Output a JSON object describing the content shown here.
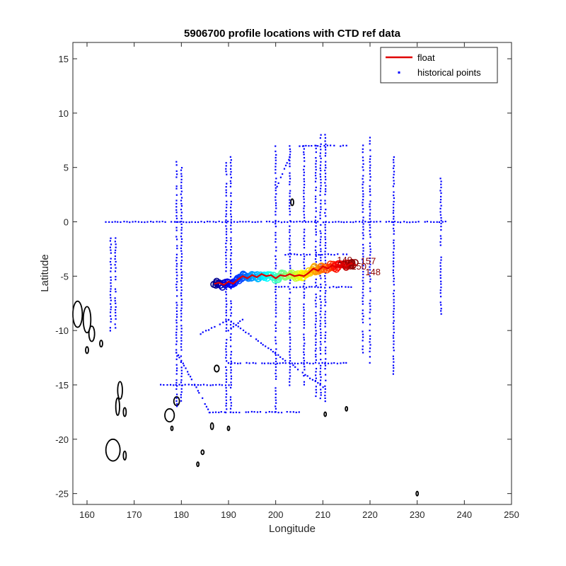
{
  "chart_data": {
    "type": "scatter",
    "title": "5906700 profile locations with CTD ref data",
    "xlabel": "Longitude",
    "ylabel": "Latitude",
    "xlim": [
      157,
      250
    ],
    "ylim": [
      -26,
      16.5
    ],
    "xticks": [
      160,
      170,
      180,
      190,
      200,
      210,
      220,
      230,
      240,
      250
    ],
    "yticks": [
      15,
      10,
      5,
      0,
      -5,
      -10,
      -15,
      -20,
      -25
    ],
    "grid": false,
    "legend": {
      "position": "top-right",
      "entries": [
        {
          "label": "float",
          "color": "#e00000",
          "marker": "line"
        },
        {
          "label": "historical points",
          "color": "#0000ff",
          "marker": "dot"
        }
      ]
    },
    "colors": {
      "float": "#e00000",
      "historical": "#0000ff",
      "coastline": "#000000",
      "profile_labels": "#8b0000"
    },
    "float_track": {
      "lon": [
        187,
        188,
        189,
        190,
        191,
        192,
        193,
        194,
        195,
        196,
        197,
        198,
        199,
        200,
        201,
        202,
        203,
        204,
        205,
        206,
        207,
        208,
        209,
        210,
        211,
        212,
        213,
        214,
        215,
        216,
        217
      ],
      "lat": [
        -5.7,
        -5.6,
        -5.8,
        -5.5,
        -5.7,
        -5.3,
        -5.0,
        -5.2,
        -4.9,
        -5.1,
        -4.8,
        -5.0,
        -4.9,
        -5.2,
        -4.9,
        -5.0,
        -4.8,
        -5.0,
        -4.9,
        -5.0,
        -4.7,
        -4.3,
        -4.5,
        -4.1,
        -4.3,
        -4.0,
        -4.2,
        -3.9,
        -4.1,
        -3.8,
        -4.0
      ]
    },
    "profile_labels": [
      "148",
      "149",
      "150",
      "157"
    ],
    "historical_lines": [
      {
        "from": [
          164,
          0
        ],
        "to": [
          236,
          0
        ]
      },
      {
        "from": [
          179,
          5.5
        ],
        "to": [
          179,
          -17
        ]
      },
      {
        "from": [
          180,
          5
        ],
        "to": [
          180,
          -17
        ]
      },
      {
        "from": [
          189.5,
          6
        ],
        "to": [
          189.5,
          -17.5
        ]
      },
      {
        "from": [
          190.5,
          6
        ],
        "to": [
          190.5,
          -17.5
        ]
      },
      {
        "from": [
          200,
          7
        ],
        "to": [
          200,
          -17.5
        ]
      },
      {
        "from": [
          203,
          7
        ],
        "to": [
          203,
          -15
        ]
      },
      {
        "from": [
          206,
          7
        ],
        "to": [
          206,
          -15
        ]
      },
      {
        "from": [
          208.5,
          7
        ],
        "to": [
          208.5,
          -16
        ]
      },
      {
        "from": [
          209.5,
          8
        ],
        "to": [
          209.5,
          -16.5
        ]
      },
      {
        "from": [
          210.5,
          8
        ],
        "to": [
          210.5,
          -16.5
        ]
      },
      {
        "from": [
          218.5,
          7
        ],
        "to": [
          218.5,
          -12
        ]
      },
      {
        "from": [
          220,
          8
        ],
        "to": [
          220,
          -13
        ]
      },
      {
        "from": [
          225,
          6
        ],
        "to": [
          225,
          -14
        ]
      },
      {
        "from": [
          235,
          4
        ],
        "to": [
          235,
          -8.5
        ]
      },
      {
        "from": [
          165,
          -1.5
        ],
        "to": [
          165,
          -10
        ]
      },
      {
        "from": [
          166,
          -1.5
        ],
        "to": [
          166,
          -10
        ]
      },
      {
        "from": [
          184,
          -10.3
        ],
        "to": [
          190,
          -9
        ]
      },
      {
        "from": [
          190,
          -9
        ],
        "to": [
          211,
          -15.5
        ]
      },
      {
        "from": [
          190,
          -10
        ],
        "to": [
          193,
          -9
        ]
      },
      {
        "from": [
          190,
          -13
        ],
        "to": [
          215,
          -13
        ]
      },
      {
        "from": [
          200,
          -6
        ],
        "to": [
          216,
          -6
        ]
      },
      {
        "from": [
          202,
          -3
        ],
        "to": [
          215,
          -3
        ]
      },
      {
        "from": [
          205,
          7
        ],
        "to": [
          215,
          7
        ]
      },
      {
        "from": [
          186,
          -17.5
        ],
        "to": [
          205,
          -17.5
        ]
      },
      {
        "from": [
          175,
          -15
        ],
        "to": [
          190,
          -15
        ]
      },
      {
        "from": [
          203,
          6
        ],
        "to": [
          200,
          3
        ]
      },
      {
        "from": [
          179,
          -12
        ],
        "to": [
          186,
          -17.5
        ]
      }
    ],
    "coast_islands": [
      {
        "lon": 158.0,
        "lat": -8.5,
        "r": [
          1.0,
          1.2
        ]
      },
      {
        "lon": 160.0,
        "lat": -9.0,
        "r": [
          0.8,
          1.2
        ]
      },
      {
        "lon": 161.0,
        "lat": -10.3,
        "r": [
          0.6,
          0.7
        ]
      },
      {
        "lon": 160.0,
        "lat": -11.8,
        "r": [
          0.3,
          0.3
        ]
      },
      {
        "lon": 163.0,
        "lat": -11.2,
        "r": [
          0.3,
          0.3
        ]
      },
      {
        "lon": 167.0,
        "lat": -15.5,
        "r": [
          0.5,
          0.8
        ]
      },
      {
        "lon": 166.5,
        "lat": -17.0,
        "r": [
          0.4,
          0.8
        ]
      },
      {
        "lon": 168.0,
        "lat": -17.5,
        "r": [
          0.3,
          0.4
        ]
      },
      {
        "lon": 165.5,
        "lat": -21.0,
        "r": [
          1.5,
          1.0
        ]
      },
      {
        "lon": 168.0,
        "lat": -21.5,
        "r": [
          0.3,
          0.4
        ]
      },
      {
        "lon": 177.5,
        "lat": -17.8,
        "r": [
          1.0,
          0.6
        ]
      },
      {
        "lon": 179.0,
        "lat": -16.5,
        "r": [
          0.6,
          0.4
        ]
      },
      {
        "lon": 178.0,
        "lat": -19.0,
        "r": [
          0.2,
          0.2
        ]
      },
      {
        "lon": 184.5,
        "lat": -21.2,
        "r": [
          0.3,
          0.2
        ]
      },
      {
        "lon": 183.5,
        "lat": -22.3,
        "r": [
          0.2,
          0.2
        ]
      },
      {
        "lon": 186.5,
        "lat": -18.8,
        "r": [
          0.3,
          0.3
        ]
      },
      {
        "lon": 187.5,
        "lat": -13.5,
        "r": [
          0.5,
          0.3
        ]
      },
      {
        "lon": 190.0,
        "lat": -19.0,
        "r": [
          0.2,
          0.2
        ]
      },
      {
        "lon": 203.5,
        "lat": 1.8,
        "r": [
          0.3,
          0.3
        ]
      },
      {
        "lon": 210.5,
        "lat": -17.7,
        "r": [
          0.2,
          0.2
        ]
      },
      {
        "lon": 215.0,
        "lat": -17.2,
        "r": [
          0.2,
          0.2
        ]
      },
      {
        "lon": 230.0,
        "lat": -25.0,
        "r": [
          0.2,
          0.2
        ]
      }
    ]
  }
}
